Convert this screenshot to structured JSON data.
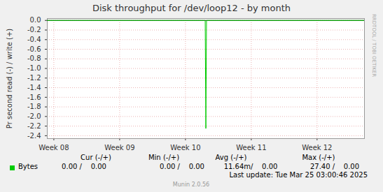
{
  "chart_data": {
    "type": "line",
    "title": "Disk throughput for /dev/loop12 - by month",
    "y_label": "Pr second read (-) / write (+)",
    "x": [
      7.9,
      10.3,
      10.31,
      10.32,
      12.72
    ],
    "series": [
      {
        "name": "Bytes",
        "color": "#00cc00",
        "values": [
          0,
          0,
          -2.25,
          0,
          0
        ]
      }
    ],
    "xlim": [
      7.9,
      12.72
    ],
    "xticks": [
      {
        "value": 8,
        "label": "Week 08"
      },
      {
        "value": 9,
        "label": "Week 09"
      },
      {
        "value": 10,
        "label": "Week 10"
      },
      {
        "value": 11,
        "label": "Week 11"
      },
      {
        "value": 12,
        "label": "Week 12"
      }
    ],
    "ylim": [
      -2.46,
      0.04
    ],
    "yticks": [
      -2.4,
      -2.2,
      {
        "value": -2,
        "label": "-2.0"
      },
      -1.8,
      -1.6,
      -1.4,
      -1.2,
      {
        "value": -1,
        "label": "-1.0"
      },
      -0.8,
      -0.6,
      -0.4,
      -0.2,
      {
        "value": 0,
        "label": "0.0"
      }
    ],
    "grid": true,
    "stats": {
      "columns": [
        "Cur (-/+)",
        "Min (-/+)",
        "Avg (-/+)",
        "Max (-/+)"
      ],
      "rows": [
        {
          "name": "Bytes",
          "cells": [
            "0.00 /    0.00",
            "0.00 /    0.00",
            "11.64m/    0.00",
            "27.40 /    0.00"
          ]
        }
      ]
    },
    "last_update": "Last update: Tue Mar 25 03:00:46 2025",
    "credit": "Munin 2.0.56",
    "watermark": "RRDTOOL / TOBI OETIKER"
  }
}
